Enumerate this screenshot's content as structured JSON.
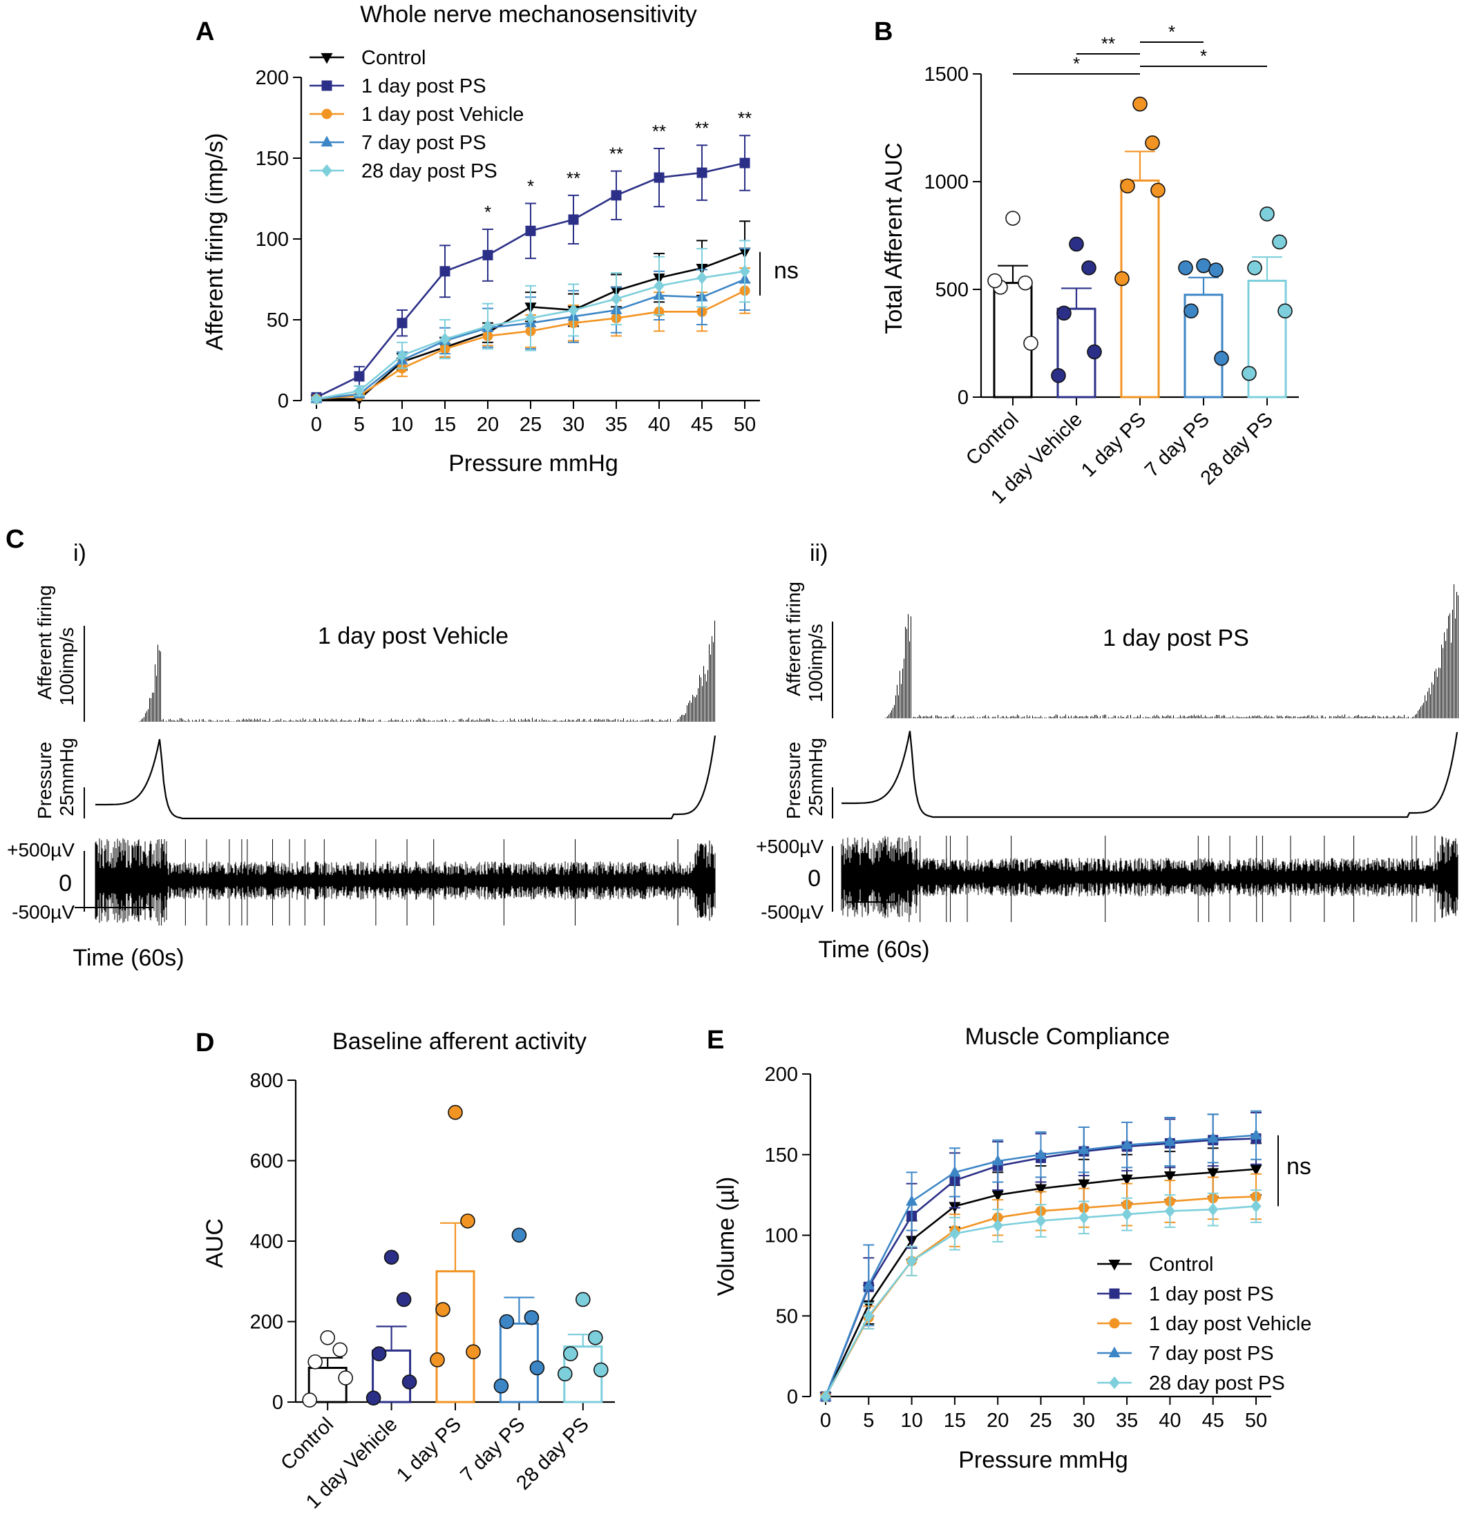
{
  "colors": {
    "Control": "#000000",
    "1 day post PS": "#2b2f87",
    "1 day post Vehicle": "#f29423",
    "7 day post PS": "#3d86c6",
    "28 day post PS": "#7dcfdc"
  },
  "series_names": [
    "Control",
    "1 day post PS",
    "1 day post Vehicle",
    "7 day post PS",
    "28 day post PS"
  ],
  "bar_groups": [
    "Control",
    "1 day Vehicle",
    "1 day PS",
    "7 day PS",
    "28 day PS"
  ],
  "chart_data": [
    {
      "id": "A",
      "type": "line",
      "panel_label": "A",
      "title": "Whole nerve mechanosensitivity",
      "xlabel": "Pressure mmHg",
      "ylabel": "Afferent firing (imp/s)",
      "x": [
        0,
        5,
        10,
        15,
        20,
        25,
        30,
        35,
        40,
        45,
        50
      ],
      "xlim": [
        0,
        50
      ],
      "ylim": [
        0,
        200
      ],
      "yticks": [
        0,
        50,
        100,
        150,
        200
      ],
      "series": [
        {
          "name": "Control",
          "marker": "triangle-down",
          "values": [
            1,
            1,
            24,
            33,
            42,
            58,
            56,
            68,
            76,
            82,
            92
          ],
          "err": [
            1,
            1,
            5,
            6,
            6,
            9,
            10,
            10,
            15,
            17,
            19
          ]
        },
        {
          "name": "1 day post PS",
          "marker": "square",
          "values": [
            2,
            15,
            48,
            80,
            90,
            105,
            112,
            127,
            138,
            141,
            147
          ],
          "err": [
            1,
            6,
            8,
            16,
            16,
            17,
            15,
            15,
            18,
            17,
            17
          ]
        },
        {
          "name": "1 day post Vehicle",
          "marker": "circle",
          "values": [
            1,
            3,
            20,
            32,
            40,
            43,
            48,
            51,
            55,
            55,
            68
          ],
          "err": [
            1,
            1,
            5,
            5,
            6,
            10,
            11,
            11,
            12,
            12,
            14
          ]
        },
        {
          "name": "7 day post PS",
          "marker": "triangle-up",
          "values": [
            1,
            4,
            25,
            37,
            45,
            48,
            52,
            56,
            65,
            64,
            75
          ],
          "err": [
            1,
            2,
            5,
            8,
            12,
            16,
            16,
            14,
            15,
            17,
            19
          ]
        },
        {
          "name": "28 day post PS",
          "marker": "diamond",
          "values": [
            1,
            6,
            28,
            38,
            46,
            51,
            56,
            63,
            71,
            76,
            80
          ],
          "err": [
            1,
            3,
            8,
            12,
            14,
            20,
            16,
            16,
            18,
            18,
            19
          ]
        }
      ],
      "annotations": [
        {
          "x": 20,
          "text": "*"
        },
        {
          "x": 25,
          "text": "*"
        },
        {
          "x": 30,
          "text": "**"
        },
        {
          "x": 35,
          "text": "**"
        },
        {
          "x": 40,
          "text": "**"
        },
        {
          "x": 45,
          "text": "**"
        },
        {
          "x": 50,
          "text": "**"
        }
      ],
      "ns_label": "ns",
      "ns_range": [
        65,
        92
      ]
    },
    {
      "id": "B",
      "type": "bar",
      "panel_label": "B",
      "ylabel": "Total Afferent AUC",
      "ylim": [
        0,
        1500
      ],
      "yticks": [
        0,
        500,
        1000,
        1500
      ],
      "categories": [
        "Control",
        "1 day Vehicle",
        "1 day PS",
        "7 day PS",
        "28 day PS"
      ],
      "values": [
        530,
        410,
        1005,
        475,
        540
      ],
      "sem": [
        80,
        95,
        135,
        80,
        110
      ],
      "points": [
        [
          830,
          530,
          510,
          250,
          540
        ],
        [
          710,
          600,
          390,
          210,
          100
        ],
        [
          1360,
          1180,
          980,
          960,
          550
        ],
        [
          610,
          590,
          400,
          180,
          600
        ],
        [
          850,
          720,
          600,
          400,
          110
        ]
      ],
      "significance": [
        {
          "from": 0,
          "to": 2,
          "label": "*"
        },
        {
          "from": 1,
          "to": 2,
          "label": "**"
        },
        {
          "from": 2,
          "to": 3,
          "label": "*"
        },
        {
          "from": 2,
          "to": 4,
          "label": "*"
        }
      ]
    },
    {
      "id": "D",
      "type": "bar",
      "panel_label": "D",
      "title": "Baseline afferent activity",
      "ylabel": "AUC",
      "ylim": [
        0,
        800
      ],
      "yticks": [
        0,
        200,
        400,
        600,
        800
      ],
      "categories": [
        "Control",
        "1 day Vehicle",
        "1 day PS",
        "7 day PS",
        "28 day PS"
      ],
      "values": [
        85,
        128,
        325,
        195,
        138
      ],
      "sem": [
        25,
        60,
        120,
        65,
        30
      ],
      "points": [
        [
          160,
          130,
          100,
          60,
          5
        ],
        [
          360,
          255,
          120,
          50,
          10
        ],
        [
          720,
          450,
          230,
          125,
          105
        ],
        [
          415,
          210,
          200,
          85,
          40
        ],
        [
          255,
          160,
          120,
          80,
          70
        ]
      ]
    },
    {
      "id": "E",
      "type": "line",
      "panel_label": "E",
      "title": "Muscle Compliance",
      "xlabel": "Pressure mmHg",
      "ylabel": "Volume (µl)",
      "x": [
        0,
        5,
        10,
        15,
        20,
        25,
        30,
        35,
        40,
        45,
        50
      ],
      "xlim": [
        0,
        50
      ],
      "ylim": [
        0,
        200
      ],
      "yticks": [
        0,
        50,
        100,
        150,
        200
      ],
      "series": [
        {
          "name": "Control",
          "marker": "triangle-down",
          "values": [
            0,
            57,
            97,
            118,
            125,
            129,
            132,
            135,
            137,
            139,
            141
          ],
          "err": [
            0,
            12,
            12,
            13,
            14,
            14,
            15,
            15,
            15,
            15,
            16
          ]
        },
        {
          "name": "1 day post PS",
          "marker": "square",
          "values": [
            0,
            68,
            112,
            134,
            143,
            148,
            152,
            155,
            157,
            159,
            160
          ],
          "err": [
            0,
            18,
            20,
            17,
            15,
            15,
            15,
            15,
            15,
            16,
            16
          ]
        },
        {
          "name": "1 day post Vehicle",
          "marker": "circle",
          "values": [
            0,
            49,
            84,
            103,
            111,
            115,
            117,
            119,
            121,
            123,
            124
          ],
          "err": [
            0,
            7,
            9,
            10,
            11,
            12,
            12,
            13,
            13,
            13,
            14
          ]
        },
        {
          "name": "7 day post PS",
          "marker": "triangle-up",
          "values": [
            0,
            69,
            121,
            139,
            146,
            150,
            153,
            156,
            158,
            160,
            162
          ],
          "err": [
            0,
            25,
            18,
            15,
            13,
            14,
            14,
            14,
            15,
            15,
            15
          ]
        },
        {
          "name": "28 day post PS",
          "marker": "diamond",
          "values": [
            0,
            50,
            84,
            101,
            106,
            109,
            111,
            113,
            115,
            116,
            118
          ],
          "err": [
            0,
            8,
            9,
            10,
            10,
            10,
            10,
            10,
            10,
            10,
            10
          ]
        }
      ],
      "ns_label": "ns",
      "ns_range": [
        118,
        162
      ]
    }
  ],
  "panel_c": {
    "panel_label": "C",
    "panels": [
      {
        "sub_label": "i)",
        "title": "1 day post Vehicle",
        "firing_label": "Afferent firing",
        "firing_scale": "100imp/s",
        "pressure_label": "Pressure",
        "pressure_scale": "25mmHg",
        "volt_top": "+500µV",
        "volt_zero": "0",
        "volt_bottom": "-500µV",
        "time_label": "Time (60s)"
      },
      {
        "sub_label": "ii)",
        "title": "1 day post PS",
        "firing_label": "Afferent firing",
        "firing_scale": "100imp/s",
        "pressure_label": "Pressure",
        "pressure_scale": "25mmHg",
        "volt_top": "+500µV",
        "volt_zero": "0",
        "volt_bottom": "-500µV",
        "time_label": "Time (60s)"
      }
    ]
  }
}
